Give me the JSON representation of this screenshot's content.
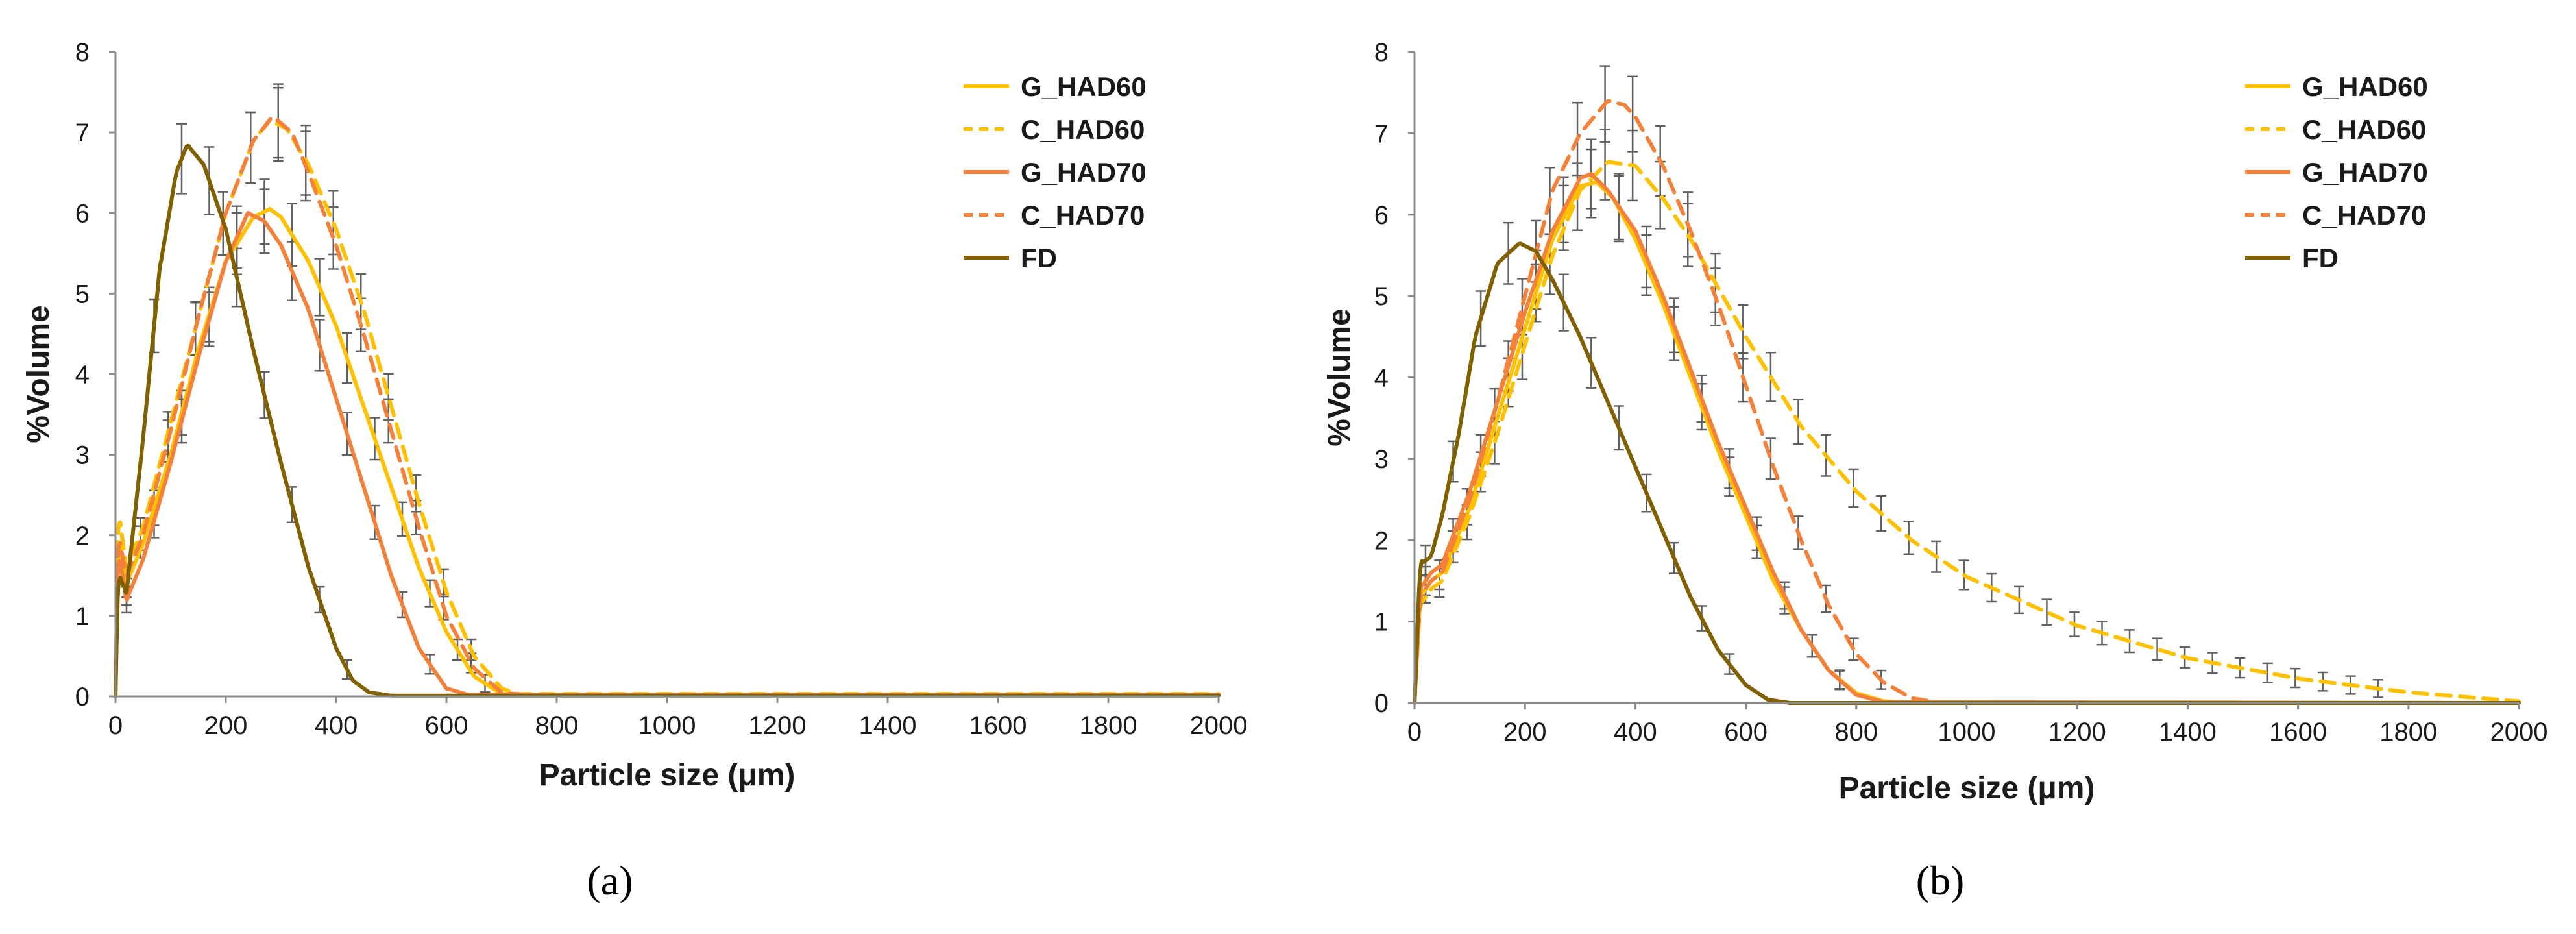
{
  "chart_data": [
    {
      "type": "line",
      "panel_label": "(a)",
      "xlabel": "Particle size (μm)",
      "ylabel": "%Volume",
      "xlim": [
        0,
        2000
      ],
      "ylim": [
        0,
        8
      ],
      "x_ticks": [
        0,
        200,
        400,
        600,
        800,
        1000,
        1200,
        1400,
        1600,
        1800,
        2000
      ],
      "y_ticks": [
        0,
        1,
        2,
        3,
        4,
        5,
        6,
        7,
        8
      ],
      "legend_position": "top-right",
      "grid": false,
      "series": [
        {
          "name": "G_HAD60",
          "color": "#FFC000",
          "dash": "solid",
          "points": [
            [
              0,
              0
            ],
            [
              5,
              2.0
            ],
            [
              20,
              1.4
            ],
            [
              50,
              1.9
            ],
            [
              100,
              3.0
            ],
            [
              150,
              4.3
            ],
            [
              200,
              5.4
            ],
            [
              250,
              5.95
            ],
            [
              280,
              6.05
            ],
            [
              300,
              5.95
            ],
            [
              350,
              5.4
            ],
            [
              400,
              4.6
            ],
            [
              450,
              3.6
            ],
            [
              500,
              2.6
            ],
            [
              550,
              1.6
            ],
            [
              600,
              0.8
            ],
            [
              650,
              0.25
            ],
            [
              700,
              0.03
            ],
            [
              750,
              0.02
            ],
            [
              2000,
              0.02
            ]
          ]
        },
        {
          "name": "C_HAD60",
          "color": "#FFC000",
          "dash": "dashed",
          "points": [
            [
              0,
              0
            ],
            [
              5,
              2.3
            ],
            [
              20,
              1.6
            ],
            [
              50,
              2.1
            ],
            [
              100,
              3.4
            ],
            [
              150,
              4.7
            ],
            [
              200,
              6.0
            ],
            [
              250,
              6.9
            ],
            [
              280,
              7.15
            ],
            [
              310,
              7.05
            ],
            [
              350,
              6.6
            ],
            [
              400,
              5.8
            ],
            [
              450,
              4.8
            ],
            [
              500,
              3.6
            ],
            [
              550,
              2.4
            ],
            [
              600,
              1.3
            ],
            [
              650,
              0.5
            ],
            [
              700,
              0.1
            ],
            [
              730,
              0.03
            ],
            [
              2000,
              0.03
            ]
          ]
        },
        {
          "name": "G_HAD70",
          "color": "#F4813A",
          "dash": "solid",
          "points": [
            [
              0,
              0
            ],
            [
              5,
              1.8
            ],
            [
              20,
              1.2
            ],
            [
              50,
              1.7
            ],
            [
              100,
              2.9
            ],
            [
              150,
              4.2
            ],
            [
              200,
              5.4
            ],
            [
              240,
              6.0
            ],
            [
              270,
              5.9
            ],
            [
              300,
              5.6
            ],
            [
              350,
              4.8
            ],
            [
              400,
              3.7
            ],
            [
              450,
              2.6
            ],
            [
              500,
              1.5
            ],
            [
              550,
              0.6
            ],
            [
              600,
              0.1
            ],
            [
              640,
              0.02
            ],
            [
              2000,
              0.02
            ]
          ]
        },
        {
          "name": "C_HAD70",
          "color": "#F4813A",
          "dash": "dashed",
          "points": [
            [
              0,
              0
            ],
            [
              5,
              2.0
            ],
            [
              20,
              1.5
            ],
            [
              50,
              2.0
            ],
            [
              100,
              3.3
            ],
            [
              150,
              4.7
            ],
            [
              200,
              6.0
            ],
            [
              250,
              6.9
            ],
            [
              285,
              7.2
            ],
            [
              320,
              7.0
            ],
            [
              350,
              6.5
            ],
            [
              400,
              5.6
            ],
            [
              450,
              4.5
            ],
            [
              500,
              3.3
            ],
            [
              550,
              2.1
            ],
            [
              600,
              1.0
            ],
            [
              650,
              0.35
            ],
            [
              700,
              0.05
            ],
            [
              740,
              0.02
            ],
            [
              2000,
              0.02
            ]
          ]
        },
        {
          "name": "FD",
          "color": "#806000",
          "dash": "solid",
          "points": [
            [
              0,
              0
            ],
            [
              5,
              1.5
            ],
            [
              20,
              1.3
            ],
            [
              50,
              3.2
            ],
            [
              80,
              5.3
            ],
            [
              110,
              6.5
            ],
            [
              130,
              6.85
            ],
            [
              160,
              6.6
            ],
            [
              200,
              5.8
            ],
            [
              250,
              4.3
            ],
            [
              300,
              2.9
            ],
            [
              350,
              1.6
            ],
            [
              400,
              0.6
            ],
            [
              430,
              0.2
            ],
            [
              460,
              0.05
            ],
            [
              500,
              0.01
            ],
            [
              2000,
              0.01
            ]
          ]
        }
      ]
    },
    {
      "type": "line",
      "panel_label": "(b)",
      "xlabel": "Particle size (μm)",
      "ylabel": "%Volume",
      "xlim": [
        0,
        2000
      ],
      "ylim": [
        0,
        8
      ],
      "x_ticks": [
        0,
        200,
        400,
        600,
        800,
        1000,
        1200,
        1400,
        1600,
        1800,
        2000
      ],
      "y_ticks": [
        0,
        1,
        2,
        3,
        4,
        5,
        6,
        7,
        8
      ],
      "legend_position": "top-right",
      "grid": false,
      "series": [
        {
          "name": "G_HAD60",
          "color": "#FFC000",
          "dash": "solid",
          "points": [
            [
              0,
              0
            ],
            [
              10,
              1.3
            ],
            [
              30,
              1.5
            ],
            [
              50,
              1.6
            ],
            [
              100,
              2.4
            ],
            [
              150,
              3.5
            ],
            [
              200,
              4.6
            ],
            [
              250,
              5.7
            ],
            [
              300,
              6.35
            ],
            [
              330,
              6.4
            ],
            [
              360,
              6.2
            ],
            [
              400,
              5.7
            ],
            [
              450,
              4.9
            ],
            [
              500,
              4.0
            ],
            [
              550,
              3.1
            ],
            [
              600,
              2.3
            ],
            [
              650,
              1.5
            ],
            [
              700,
              0.9
            ],
            [
              750,
              0.4
            ],
            [
              800,
              0.12
            ],
            [
              850,
              0.02
            ],
            [
              900,
              0.0
            ],
            [
              2000,
              0.0
            ]
          ]
        },
        {
          "name": "C_HAD60",
          "color": "#FFC000",
          "dash": "dashed",
          "points": [
            [
              0,
              0
            ],
            [
              10,
              1.2
            ],
            [
              30,
              1.4
            ],
            [
              50,
              1.5
            ],
            [
              100,
              2.3
            ],
            [
              150,
              3.3
            ],
            [
              200,
              4.4
            ],
            [
              250,
              5.5
            ],
            [
              300,
              6.3
            ],
            [
              350,
              6.65
            ],
            [
              400,
              6.6
            ],
            [
              450,
              6.2
            ],
            [
              500,
              5.7
            ],
            [
              550,
              5.1
            ],
            [
              600,
              4.5
            ],
            [
              700,
              3.4
            ],
            [
              800,
              2.6
            ],
            [
              900,
              2.0
            ],
            [
              1000,
              1.55
            ],
            [
              1200,
              0.95
            ],
            [
              1400,
              0.55
            ],
            [
              1600,
              0.3
            ],
            [
              1800,
              0.13
            ],
            [
              2000,
              0.02
            ]
          ]
        },
        {
          "name": "G_HAD70",
          "color": "#F4813A",
          "dash": "solid",
          "points": [
            [
              0,
              0
            ],
            [
              10,
              1.4
            ],
            [
              30,
              1.6
            ],
            [
              50,
              1.7
            ],
            [
              100,
              2.6
            ],
            [
              150,
              3.7
            ],
            [
              200,
              4.8
            ],
            [
              250,
              5.8
            ],
            [
              300,
              6.45
            ],
            [
              320,
              6.5
            ],
            [
              350,
              6.3
            ],
            [
              400,
              5.8
            ],
            [
              450,
              5.0
            ],
            [
              500,
              4.1
            ],
            [
              550,
              3.2
            ],
            [
              600,
              2.4
            ],
            [
              650,
              1.6
            ],
            [
              700,
              0.9
            ],
            [
              750,
              0.4
            ],
            [
              800,
              0.1
            ],
            [
              850,
              0.01
            ],
            [
              2000,
              0.0
            ]
          ]
        },
        {
          "name": "C_HAD70",
          "color": "#F4813A",
          "dash": "dashed",
          "points": [
            [
              0,
              0
            ],
            [
              10,
              1.3
            ],
            [
              30,
              1.5
            ],
            [
              50,
              1.6
            ],
            [
              100,
              2.5
            ],
            [
              150,
              3.7
            ],
            [
              200,
              5.0
            ],
            [
              250,
              6.3
            ],
            [
              300,
              7.0
            ],
            [
              350,
              7.4
            ],
            [
              380,
              7.35
            ],
            [
              400,
              7.2
            ],
            [
              450,
              6.6
            ],
            [
              500,
              5.8
            ],
            [
              550,
              4.9
            ],
            [
              600,
              3.9
            ],
            [
              650,
              2.9
            ],
            [
              700,
              2.0
            ],
            [
              750,
              1.2
            ],
            [
              800,
              0.6
            ],
            [
              850,
              0.25
            ],
            [
              900,
              0.06
            ],
            [
              950,
              0.0
            ],
            [
              2000,
              0.0
            ]
          ]
        },
        {
          "name": "FD",
          "color": "#806000",
          "dash": "solid",
          "points": [
            [
              0,
              0
            ],
            [
              10,
              1.7
            ],
            [
              30,
              1.8
            ],
            [
              50,
              2.3
            ],
            [
              80,
              3.3
            ],
            [
              110,
              4.5
            ],
            [
              150,
              5.4
            ],
            [
              190,
              5.65
            ],
            [
              220,
              5.55
            ],
            [
              250,
              5.2
            ],
            [
              300,
              4.5
            ],
            [
              350,
              3.7
            ],
            [
              400,
              2.9
            ],
            [
              450,
              2.1
            ],
            [
              500,
              1.3
            ],
            [
              550,
              0.65
            ],
            [
              600,
              0.22
            ],
            [
              640,
              0.04
            ],
            [
              680,
              0.0
            ],
            [
              2000,
              0.0
            ]
          ]
        }
      ]
    }
  ]
}
